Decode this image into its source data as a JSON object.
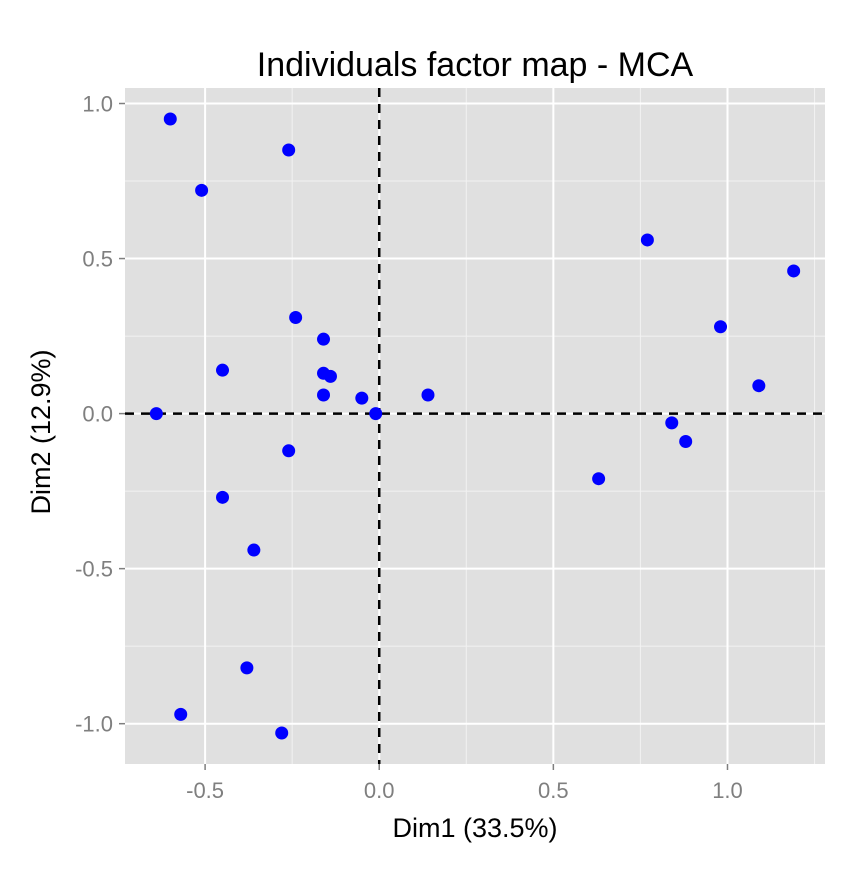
{
  "chart_data": {
    "type": "scatter",
    "title": "Individuals factor map - MCA",
    "xlabel": "Dim1 (33.5%)",
    "ylabel": "Dim2 (12.9%)",
    "xlim": [
      -0.73,
      1.28
    ],
    "ylim": [
      -1.13,
      1.05
    ],
    "xticks": [
      -0.5,
      0.0,
      0.5,
      1.0
    ],
    "xtick_labels": [
      "-0.5",
      "0.0",
      "0.5",
      "1.0"
    ],
    "yticks": [
      -1.0,
      -0.5,
      0.0,
      0.5,
      1.0
    ],
    "ytick_labels": [
      "-1.0",
      "-0.5",
      "0.0",
      "0.5",
      "1.0"
    ],
    "reference_lines": {
      "x": 0,
      "y": 0,
      "style": "dashed"
    },
    "grid": true,
    "point_color": "#0000ff",
    "panel_color": "#e0e0e0",
    "grid_color": "#ffffff",
    "points": [
      {
        "x": -0.6,
        "y": 0.95
      },
      {
        "x": -0.26,
        "y": 0.85
      },
      {
        "x": -0.51,
        "y": 0.72
      },
      {
        "x": -0.24,
        "y": 0.31
      },
      {
        "x": -0.16,
        "y": 0.24
      },
      {
        "x": -0.45,
        "y": 0.14
      },
      {
        "x": -0.16,
        "y": 0.13
      },
      {
        "x": -0.14,
        "y": 0.12
      },
      {
        "x": -0.16,
        "y": 0.06
      },
      {
        "x": -0.05,
        "y": 0.05
      },
      {
        "x": -0.01,
        "y": 0.0
      },
      {
        "x": -0.64,
        "y": 0.0
      },
      {
        "x": 0.14,
        "y": 0.06
      },
      {
        "x": -0.26,
        "y": -0.12
      },
      {
        "x": -0.45,
        "y": -0.27
      },
      {
        "x": -0.36,
        "y": -0.44
      },
      {
        "x": -0.38,
        "y": -0.82
      },
      {
        "x": -0.57,
        "y": -0.97
      },
      {
        "x": -0.28,
        "y": -1.03
      },
      {
        "x": 0.63,
        "y": -0.21
      },
      {
        "x": 0.77,
        "y": 0.56
      },
      {
        "x": 0.84,
        "y": -0.03
      },
      {
        "x": 0.88,
        "y": -0.09
      },
      {
        "x": 0.98,
        "y": 0.28
      },
      {
        "x": 1.09,
        "y": 0.09
      },
      {
        "x": 1.19,
        "y": 0.46
      }
    ]
  }
}
